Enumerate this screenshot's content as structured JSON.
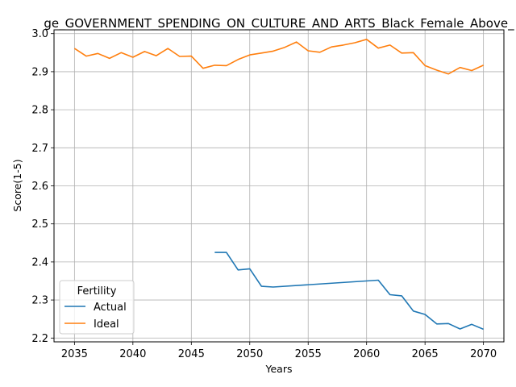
{
  "chart_data": {
    "type": "line",
    "title": "ge_GOVERNMENT_SPENDING_ON_CULTURE_AND_ARTS_Black_Female_Above_",
    "xlabel": "Years",
    "ylabel": "Score(1-5)",
    "xlim": [
      2033.25,
      2071.75
    ],
    "ylim": [
      2.19,
      3.01
    ],
    "xticks": [
      2035,
      2040,
      2045,
      2050,
      2055,
      2060,
      2065,
      2070
    ],
    "yticks": [
      "2.2",
      "2.3",
      "2.4",
      "2.5",
      "2.6",
      "2.7",
      "2.8",
      "2.9",
      "3.0"
    ],
    "grid": true,
    "legend": {
      "title": "Fertility",
      "placement": "lower-left"
    },
    "series": [
      {
        "name": "Actual",
        "color": "#1f77b4",
        "x": [
          2047,
          2048,
          2049,
          2050,
          2051,
          2052,
          2061,
          2062,
          2063,
          2064,
          2065,
          2066,
          2067,
          2068,
          2069,
          2070
        ],
        "y": [
          2.425,
          2.425,
          2.379,
          2.382,
          2.336,
          2.334,
          2.352,
          2.314,
          2.311,
          2.271,
          2.262,
          2.237,
          2.238,
          2.224,
          2.236,
          2.223
        ]
      },
      {
        "name": "Ideal",
        "color": "#ff7f0e",
        "x": [
          2035,
          2036,
          2037,
          2038,
          2039,
          2040,
          2041,
          2042,
          2043,
          2044,
          2045,
          2046,
          2047,
          2048,
          2049,
          2050,
          2051,
          2052,
          2053,
          2054,
          2055,
          2056,
          2057,
          2058,
          2059,
          2060,
          2061,
          2062,
          2063,
          2064,
          2065,
          2066,
          2067,
          2068,
          2069,
          2070
        ],
        "y": [
          2.961,
          2.941,
          2.948,
          2.935,
          2.95,
          2.938,
          2.953,
          2.942,
          2.961,
          2.94,
          2.941,
          2.909,
          2.917,
          2.916,
          2.932,
          2.944,
          2.949,
          2.954,
          2.964,
          2.978,
          2.955,
          2.951,
          2.965,
          2.97,
          2.976,
          2.985,
          2.962,
          2.97,
          2.949,
          2.95,
          2.916,
          2.904,
          2.894,
          2.911,
          2.903,
          2.917
        ]
      }
    ]
  }
}
